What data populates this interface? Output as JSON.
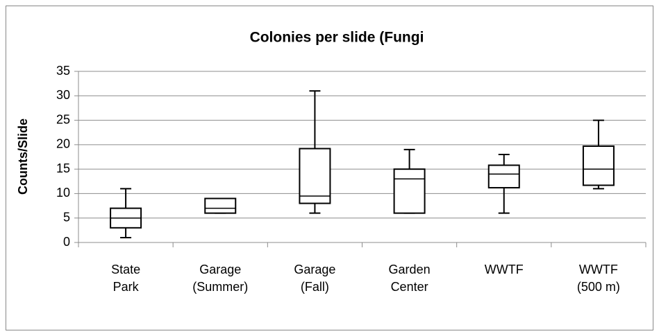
{
  "chart_data": {
    "type": "box",
    "title": "Colonies per slide (Fungi",
    "y_label": "Counts/Slide",
    "categories": [
      [
        "State",
        "Park"
      ],
      [
        "Garage",
        "(Summer)"
      ],
      [
        "Garage",
        "(Fall)"
      ],
      [
        "Garden",
        "Center"
      ],
      [
        "WWTF"
      ],
      [
        "WWTF",
        "(500 m)"
      ]
    ],
    "boxes": [
      {
        "min": 1,
        "q1": 3,
        "median": 5,
        "q3": 7,
        "max": 11
      },
      {
        "min": 6,
        "q1": 6,
        "median": 7,
        "q3": 9,
        "max": 9
      },
      {
        "min": 6,
        "q1": 8,
        "median": 9.5,
        "q3": 19.2,
        "max": 31
      },
      {
        "min": 6,
        "q1": 6,
        "median": 13,
        "q3": 15,
        "max": 19
      },
      {
        "min": 6,
        "q1": 11.2,
        "median": 14,
        "q3": 15.8,
        "max": 18
      },
      {
        "min": 11,
        "q1": 11.7,
        "median": 15,
        "q3": 19.7,
        "max": 25
      }
    ],
    "color": "#000000",
    "ylim": [
      0,
      35
    ],
    "yticks": [
      0,
      5,
      10,
      15,
      20,
      25,
      30,
      35
    ],
    "grid": true
  }
}
